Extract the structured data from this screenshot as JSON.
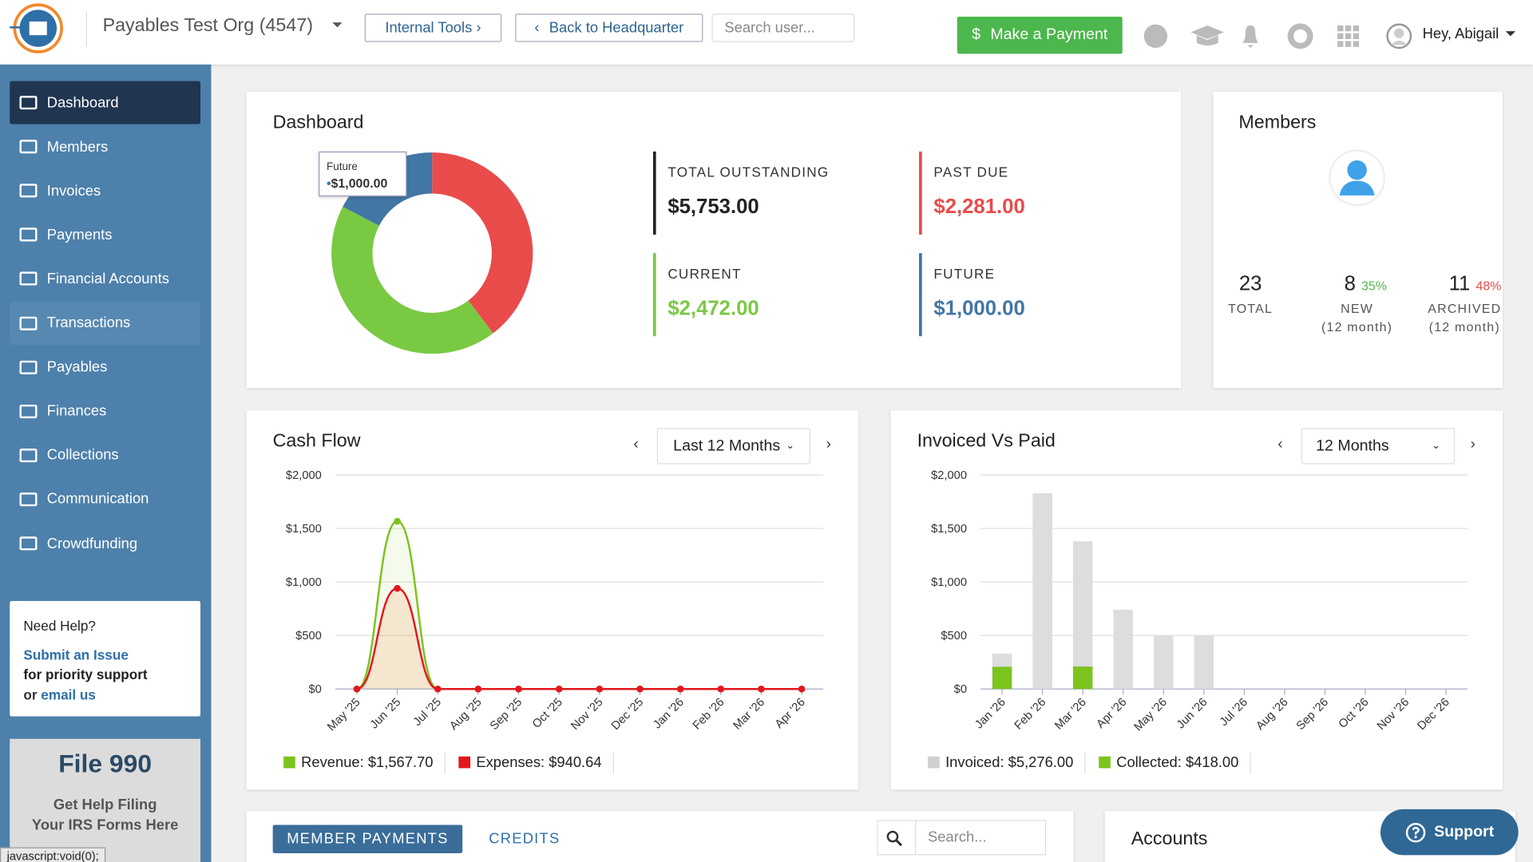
{
  "header": {
    "org": "Payables Test Org (4547)",
    "internal_tools": "Internal Tools ›",
    "back": "Back to Headquarter",
    "search_placeholder": "Search user...",
    "make_payment": "Make a Payment",
    "greeting": "Hey, Abigail"
  },
  "sidebar": {
    "items": [
      "Dashboard",
      "Members",
      "Invoices",
      "Payments",
      "Financial Accounts",
      "Transactions",
      "Payables",
      "Finances",
      "Collections",
      "Communication",
      "Crowdfunding"
    ],
    "help": {
      "title": "Need Help?",
      "submit": "Submit an Issue",
      "priority": "for priority support",
      "or": "or",
      "email": "email us"
    },
    "promo": {
      "title": "File 990",
      "line1": "Get Help Filing",
      "line2": "Your IRS Forms Here"
    },
    "status": "javascript:void(0);"
  },
  "dashboard": {
    "title": "Dashboard",
    "total_name": "TOTAL OUTSTANDING",
    "total_label": "$5,753.00",
    "donut": {
      "type": "pie",
      "categories": [
        "PAST DUE",
        "CURRENT",
        "FUTURE"
      ],
      "values": [
        2281,
        2472,
        1000
      ],
      "value_labels": [
        "$2,281.00",
        "$2,472.00",
        "$1,000.00"
      ],
      "colors": [
        "#e94b4b",
        "#7ac943",
        "#4276a4"
      ]
    },
    "tooltip": {
      "label": "Future"
    }
  },
  "members": {
    "title": "Members",
    "total": "23",
    "total_label": "TOTAL",
    "new": "8",
    "new_pct": "35%",
    "new_label": "NEW",
    "archived": "11",
    "archived_pct": "48%",
    "archived_label": "ARCHIVED",
    "period": "(12 month)"
  },
  "cash_flow": {
    "title": "Cash Flow",
    "range": "Last 12 Months",
    "chart": {
      "type": "line",
      "categories": [
        "May '25",
        "Jun '25",
        "Jul '25",
        "Aug '25",
        "Sep '25",
        "Oct '25",
        "Nov '25",
        "Dec '25",
        "Jan '26",
        "Feb '26",
        "Mar '26",
        "Apr '26"
      ],
      "series": [
        {
          "name": "Revenue: $1,567.70",
          "color": "#7ac41d",
          "values": [
            0,
            1567.7,
            0,
            0,
            0,
            0,
            0,
            0,
            0,
            0,
            0,
            0
          ]
        },
        {
          "name": "Expenses: $940.64",
          "color": "#e3161e",
          "values": [
            0,
            940.64,
            0,
            0,
            0,
            0,
            0,
            0,
            0,
            0,
            0,
            0
          ]
        }
      ],
      "ylim": [
        0,
        2000
      ],
      "yticks": [
        {
          "value": 0,
          "label": "$0"
        },
        {
          "value": 500,
          "label": "$500"
        },
        {
          "value": 1000,
          "label": "$1,000"
        },
        {
          "value": 1500,
          "label": "$1,500"
        },
        {
          "value": 2000,
          "label": "$2,000"
        }
      ],
      "grid": true
    }
  },
  "invoiced": {
    "title": "Invoiced Vs Paid",
    "range": "12 Months",
    "chart": {
      "type": "bar",
      "categories": [
        "Jan '26",
        "Feb '26",
        "Mar '26",
        "Apr '26",
        "May '26",
        "Jun '26",
        "Jul '26",
        "Aug '26",
        "Sep '26",
        "Oct '26",
        "Nov '26",
        "Dec '26"
      ],
      "series": [
        {
          "name": "Invoiced: $5,276.00",
          "color": "#dddddd",
          "values": [
            330,
            1830,
            1380,
            740,
            498,
            498,
            0,
            0,
            0,
            0,
            0,
            0
          ]
        },
        {
          "name": "Collected: $418.00",
          "color": "#7cc41d",
          "values": [
            208,
            0,
            210,
            0,
            0,
            0,
            0,
            0,
            0,
            0,
            0,
            0
          ]
        }
      ],
      "ylim": [
        0,
        2000
      ],
      "yticks": [
        {
          "value": 0,
          "label": "$0"
        },
        {
          "value": 500,
          "label": "$500"
        },
        {
          "value": 1000,
          "label": "$1,000"
        },
        {
          "value": 1500,
          "label": "$1,500"
        },
        {
          "value": 2000,
          "label": "$2,000"
        }
      ],
      "grid": true
    }
  },
  "bottom": {
    "tabs": [
      "MEMBER PAYMENTS",
      "CREDITS"
    ],
    "search_placeholder": "Search...",
    "accounts": "Accounts",
    "support": "Support"
  }
}
